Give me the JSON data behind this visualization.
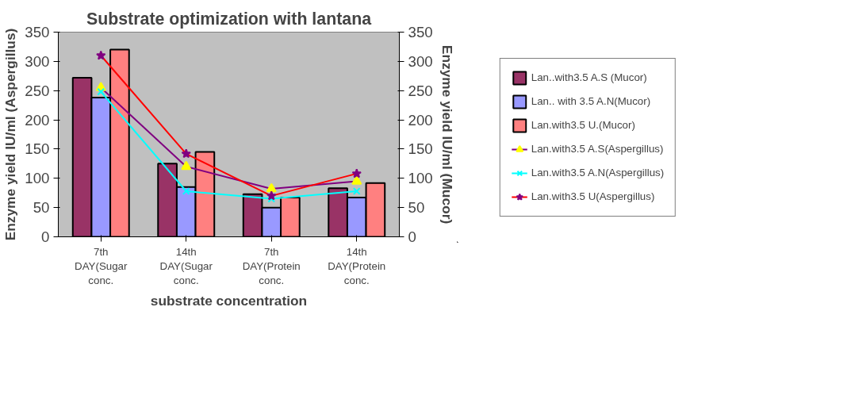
{
  "chart_data": {
    "type": "bar",
    "title": "Substrate optimization with lantana",
    "xlabel": "substrate concentration",
    "ylabel": "Enzyme yield IU/ml (Aspergillus)",
    "y2label": "Enzyme yield IU/ml (Mucor)",
    "categories": [
      "7th\nDAY(Sugar\nconc.",
      "14th\nDAY(Sugar\nconc.",
      "7th\nDAY(Protein\nconc.",
      "14th\nDAY(Protein\nconc."
    ],
    "series": [
      {
        "name": "Lan..with3.5 A.S (Mucor)",
        "axis": "y2",
        "color": "#993366",
        "values": [
          272,
          125,
          73,
          83
        ]
      },
      {
        "name": "Lan.. with 3.5 A.N(Mucor)",
        "axis": "y2",
        "color": "#9999ff",
        "values": [
          238,
          85,
          50,
          67
        ]
      },
      {
        "name": "Lan.with3.5 U.(Mucor)",
        "axis": "y2",
        "color": "#ff8080",
        "values": [
          320,
          145,
          67,
          92
        ]
      },
      {
        "name": "Lan.with3.5 A.S(Aspergillus)",
        "type": "line",
        "color": "#800080",
        "marker": "triangle",
        "colors": [
          "#ffff00",
          "#ffff00",
          "#ffff00",
          "#ffff00"
        ],
        "values": [
          255,
          120,
          82,
          95
        ]
      },
      {
        "name": "Lan.with3.5 A.N(Aspergillus)",
        "type": "line",
        "color": "#00ffff",
        "marker": "cross",
        "values": [
          248,
          78,
          65,
          78
        ]
      },
      {
        "name": "Lan.with3.5 U(Aspergillus)",
        "type": "line",
        "color": "#ff0000",
        "marker": "star",
        "colors": [
          "#800080",
          "#800080",
          "#800080",
          "#800080"
        ],
        "values": [
          310,
          142,
          70,
          108
        ]
      }
    ],
    "ylim": [
      0,
      350
    ],
    "yticks": [
      0,
      50,
      100,
      150,
      200,
      250,
      300,
      350
    ],
    "y2lim": [
      0,
      350
    ],
    "y2ticks": [
      0,
      50,
      100,
      150,
      200,
      250,
      300,
      350
    ],
    "grid": false,
    "legend": "right"
  }
}
